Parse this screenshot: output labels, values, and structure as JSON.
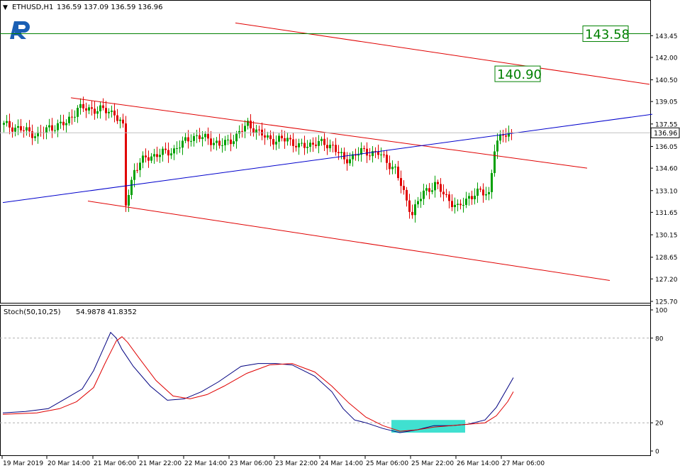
{
  "header": {
    "symbol": "ETHUSD,H1",
    "ohlc": "136.59 137.09 136.59 136.96"
  },
  "colors": {
    "bull": "#00a000",
    "bear": "#e00000",
    "channel": "#e00000",
    "trendline": "#0000cc",
    "level_line": "#008000",
    "stoch_main": "#000080",
    "stoch_signal": "#e00000",
    "highlight": "#40e0d0",
    "logo": "#1a5fb4"
  },
  "chart_data": [
    {
      "type": "candlestick",
      "symbol": "ETHUSD",
      "timeframe": "H1",
      "y_ticks": [
        "143.45",
        "142.00",
        "140.50",
        "139.05",
        "137.55",
        "136.05",
        "134.60",
        "133.10",
        "131.65",
        "130.15",
        "128.65",
        "127.20",
        "125.70"
      ],
      "ylim": [
        125.7,
        144.6
      ],
      "current_price": "136.96",
      "price_labels": [
        {
          "text": "143.58",
          "price": 143.58
        },
        {
          "text": "140.90",
          "price": 140.9
        }
      ],
      "horizontal_level": 143.58,
      "x_labels": [
        "19 Mar 2019",
        "20 Mar 14:00",
        "21 Mar 06:00",
        "21 Mar 22:00",
        "22 Mar 14:00",
        "23 Mar 06:00",
        "23 Mar 22:00",
        "24 Mar 14:00",
        "25 Mar 06:00",
        "25 Mar 22:00",
        "26 Mar 14:00",
        "27 Mar 06:00"
      ],
      "bar_count": 180,
      "channel_upper": [
        {
          "bar": 24,
          "price": 139.3
        },
        {
          "bar": 206,
          "price": 134.6
        }
      ],
      "channel_lower": [
        {
          "bar": 30,
          "price": 132.4
        },
        {
          "bar": 214,
          "price": 127.1
        }
      ],
      "channel_top": [
        {
          "bar": 82,
          "price": 144.3
        },
        {
          "bar": 228,
          "price": 140.2
        }
      ],
      "trendline": [
        {
          "bar": 0,
          "price": 132.3
        },
        {
          "bar": 229,
          "price": 138.2
        }
      ],
      "anchors": [
        {
          "bar": 0,
          "price": 137.5
        },
        {
          "bar": 6,
          "price": 137.2
        },
        {
          "bar": 12,
          "price": 136.8
        },
        {
          "bar": 16,
          "price": 137.3
        },
        {
          "bar": 22,
          "price": 137.6
        },
        {
          "bar": 26,
          "price": 138.6
        },
        {
          "bar": 34,
          "price": 138.5
        },
        {
          "bar": 39,
          "price": 138.3
        },
        {
          "bar": 42,
          "price": 137.3
        },
        {
          "bar": 43,
          "price": 132.2
        },
        {
          "bar": 46,
          "price": 134.5
        },
        {
          "bar": 50,
          "price": 135.3
        },
        {
          "bar": 60,
          "price": 135.8
        },
        {
          "bar": 66,
          "price": 136.7
        },
        {
          "bar": 72,
          "price": 136.6
        },
        {
          "bar": 76,
          "price": 136.1
        },
        {
          "bar": 82,
          "price": 136.7
        },
        {
          "bar": 86,
          "price": 137.6
        },
        {
          "bar": 90,
          "price": 136.9
        },
        {
          "bar": 96,
          "price": 136.4
        },
        {
          "bar": 100,
          "price": 136.6
        },
        {
          "bar": 104,
          "price": 136.0
        },
        {
          "bar": 110,
          "price": 136.3
        },
        {
          "bar": 116,
          "price": 136.1
        },
        {
          "bar": 120,
          "price": 135.1
        },
        {
          "bar": 126,
          "price": 135.7
        },
        {
          "bar": 132,
          "price": 135.6
        },
        {
          "bar": 138,
          "price": 134.5
        },
        {
          "bar": 142,
          "price": 132.4
        },
        {
          "bar": 144,
          "price": 131.6
        },
        {
          "bar": 148,
          "price": 133.0
        },
        {
          "bar": 152,
          "price": 133.5
        },
        {
          "bar": 156,
          "price": 132.7
        },
        {
          "bar": 160,
          "price": 131.9
        },
        {
          "bar": 164,
          "price": 132.7
        },
        {
          "bar": 168,
          "price": 133.0
        },
        {
          "bar": 171,
          "price": 132.9
        },
        {
          "bar": 173,
          "price": 135.9
        },
        {
          "bar": 176,
          "price": 136.9
        },
        {
          "bar": 179,
          "price": 136.96
        }
      ]
    },
    {
      "type": "line",
      "name": "Stoch(50,10,25)",
      "values_label": "54.9878 41.8352",
      "ylim": [
        0,
        100
      ],
      "y_ticks": [
        "100",
        "80",
        "20",
        "0"
      ],
      "levels": [
        80,
        20
      ],
      "series": [
        {
          "name": "main",
          "x": [
            0,
            8,
            16,
            22,
            28,
            32,
            36,
            38,
            40,
            42,
            46,
            52,
            58,
            64,
            70,
            76,
            84,
            90,
            96,
            102,
            110,
            116,
            120,
            124,
            128,
            134,
            140,
            146,
            152,
            158,
            164,
            170,
            174,
            178,
            180
          ],
          "y": [
            27,
            28,
            30,
            37,
            44,
            57,
            75,
            84,
            80,
            72,
            60,
            46,
            36,
            37,
            42,
            49,
            60,
            62,
            62,
            61,
            53,
            42,
            30,
            22,
            20,
            16,
            13,
            15,
            18,
            18,
            19,
            22,
            31,
            45,
            52
          ]
        },
        {
          "name": "signal",
          "x": [
            0,
            12,
            20,
            26,
            32,
            36,
            40,
            42,
            44,
            48,
            54,
            60,
            66,
            72,
            78,
            86,
            94,
            102,
            110,
            116,
            122,
            128,
            134,
            140,
            146,
            152,
            158,
            164,
            170,
            174,
            178,
            180
          ],
          "y": [
            26,
            27,
            30,
            35,
            45,
            62,
            78,
            81,
            77,
            66,
            50,
            39,
            37,
            40,
            46,
            55,
            61,
            62,
            56,
            46,
            34,
            24,
            18,
            14,
            15,
            17,
            18,
            19,
            20,
            25,
            35,
            42
          ]
        }
      ],
      "highlight": {
        "bar_from": 137,
        "bar_to": 163,
        "value_from": 13,
        "value_to": 22
      }
    }
  ]
}
